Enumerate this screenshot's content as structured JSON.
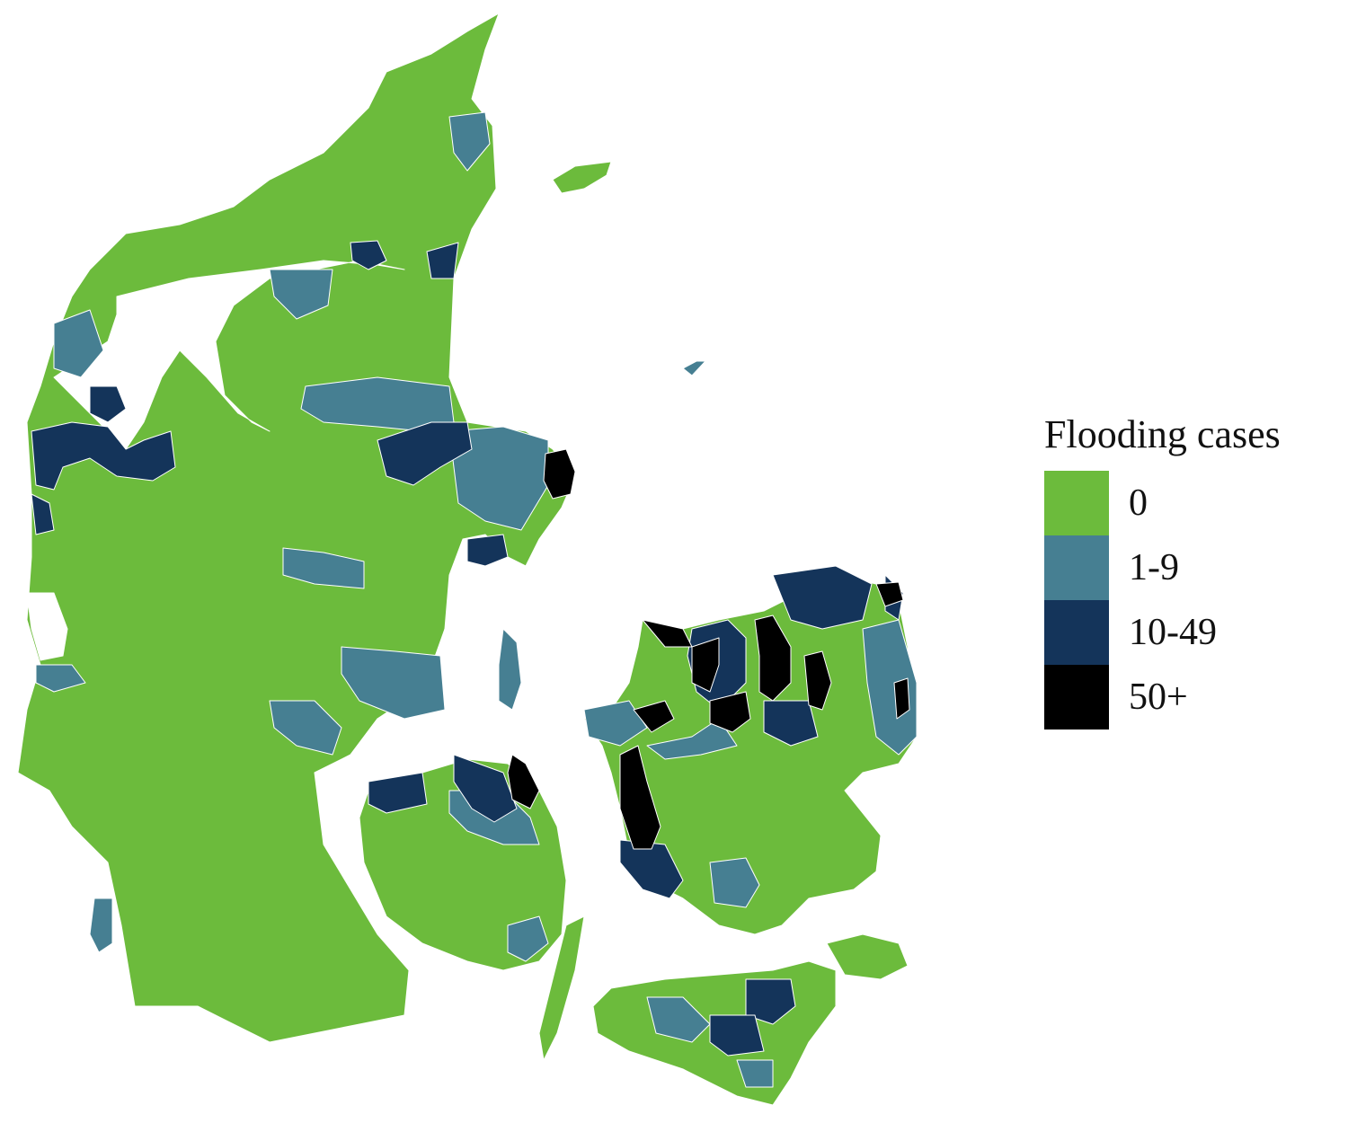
{
  "legend": {
    "title": "Flooding cases",
    "items": [
      {
        "label": "0",
        "color": "#6cbb3c"
      },
      {
        "label": "1-9",
        "color": "#467f92"
      },
      {
        "label": "10-49",
        "color": "#14345a"
      },
      {
        "label": "50+",
        "color": "#000000"
      }
    ]
  },
  "colors": {
    "water": "#ffffff",
    "boundary": "#ffffff"
  }
}
